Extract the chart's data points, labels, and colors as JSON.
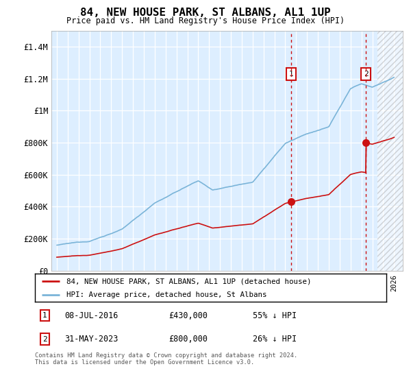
{
  "title": "84, NEW HOUSE PARK, ST ALBANS, AL1 1UP",
  "subtitle": "Price paid vs. HM Land Registry's House Price Index (HPI)",
  "ylabel_ticks": [
    "£0",
    "£200K",
    "£400K",
    "£600K",
    "£800K",
    "£1M",
    "£1.2M",
    "£1.4M"
  ],
  "ylim": [
    0,
    1500000
  ],
  "yticks": [
    0,
    200000,
    400000,
    600000,
    800000,
    1000000,
    1200000,
    1400000
  ],
  "hpi_color": "#7ab4d8",
  "price_color": "#cc1111",
  "marker1_date": 2016.53,
  "marker2_date": 2023.41,
  "marker1_price": 430000,
  "marker2_price": 800000,
  "legend1": "84, NEW HOUSE PARK, ST ALBANS, AL1 1UP (detached house)",
  "legend2": "HPI: Average price, detached house, St Albans",
  "annotation1_date": "08-JUL-2016",
  "annotation1_price": "£430,000",
  "annotation1_hpi": "55% ↓ HPI",
  "annotation2_date": "31-MAY-2023",
  "annotation2_price": "£800,000",
  "annotation2_hpi": "26% ↓ HPI",
  "footer": "Contains HM Land Registry data © Crown copyright and database right 2024.\nThis data is licensed under the Open Government Licence v3.0.",
  "xlim_left": 1994.5,
  "xlim_right": 2026.8,
  "future_start": 2024.5,
  "chart_bg": "#ddeeff",
  "hatch_bg": "#d8d8d8"
}
